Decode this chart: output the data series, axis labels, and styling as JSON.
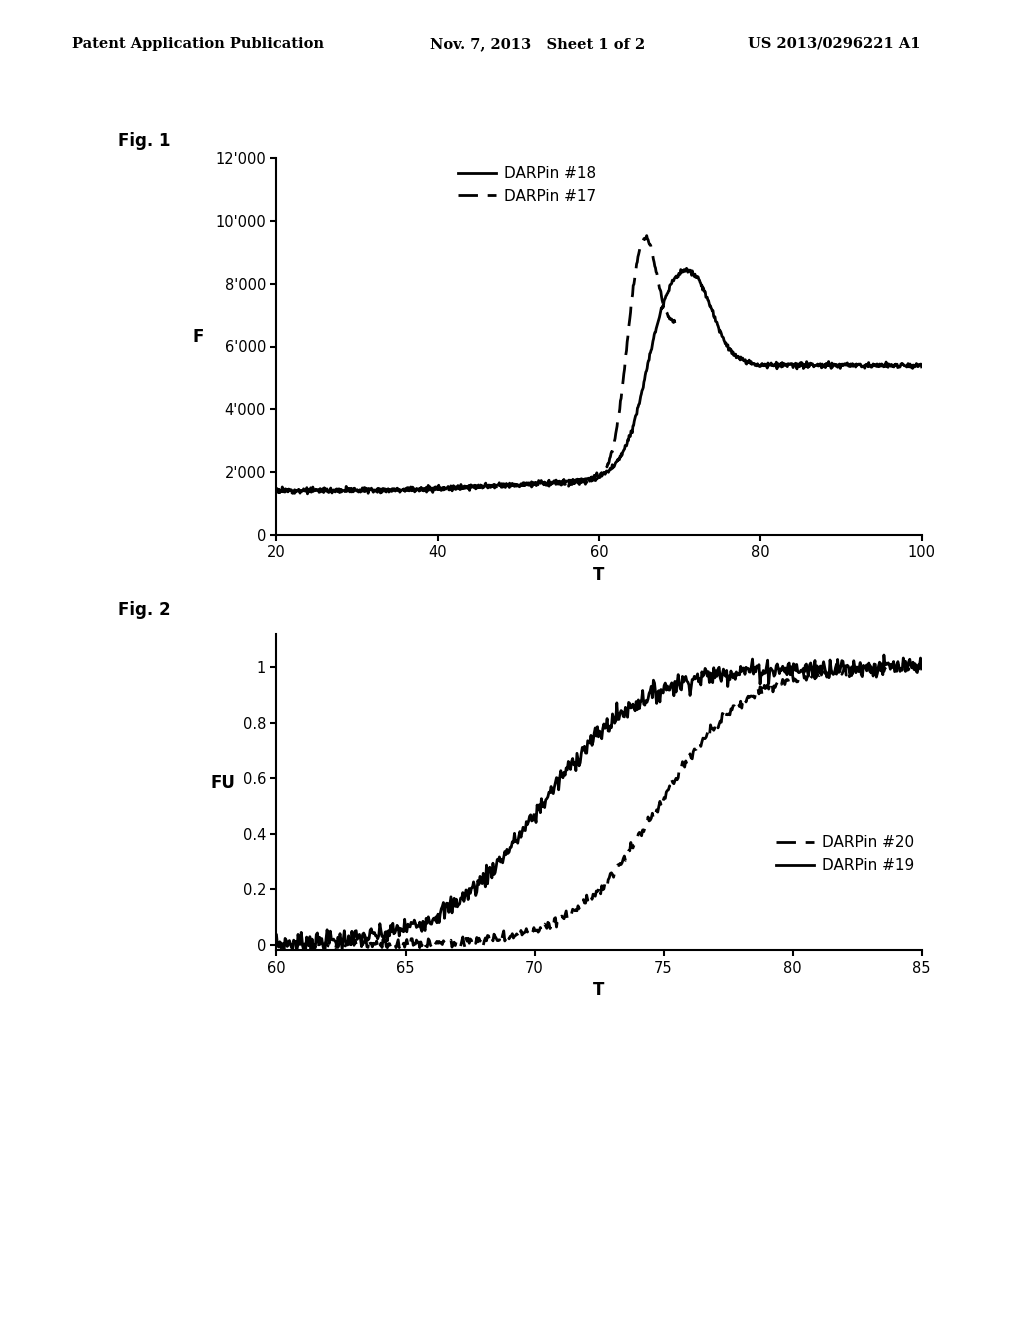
{
  "fig1_label": "Fig. 1",
  "fig2_label": "Fig. 2",
  "header_left": "Patent Application Publication",
  "header_mid": "Nov. 7, 2013   Sheet 1 of 2",
  "header_right": "US 2013/0296221 A1",
  "fig1": {
    "xlabel": "T",
    "ylabel": "F",
    "xlim": [
      20,
      100
    ],
    "ylim": [
      0,
      12000
    ],
    "xticks": [
      20,
      40,
      60,
      80,
      100
    ],
    "yticks": [
      0,
      2000,
      4000,
      6000,
      8000,
      10000,
      12000
    ],
    "ytick_labels": [
      "0",
      "2'000",
      "4'000",
      "6'000",
      "8'000",
      "10'000",
      "12'000"
    ],
    "legend": [
      {
        "label": "DARPin #18",
        "style": "solid"
      },
      {
        "label": "DARPin #17",
        "style": "dashed"
      }
    ]
  },
  "fig2": {
    "xlabel": "T",
    "ylabel": "FU",
    "xlim": [
      60,
      85
    ],
    "ylim": [
      -0.02,
      1.12
    ],
    "xticks": [
      60,
      65,
      70,
      75,
      80,
      85
    ],
    "yticks": [
      0,
      0.2,
      0.4,
      0.6,
      0.8,
      1.0
    ],
    "ytick_labels": [
      "0",
      "0.2",
      "0.4",
      "0.6",
      "0.8",
      "1"
    ],
    "legend": [
      {
        "label": "DARPin #20",
        "style": "dashed"
      },
      {
        "label": "DARPin #19",
        "style": "solid"
      }
    ]
  },
  "background_color": "#ffffff",
  "line_color": "#000000",
  "linewidth": 2.0
}
